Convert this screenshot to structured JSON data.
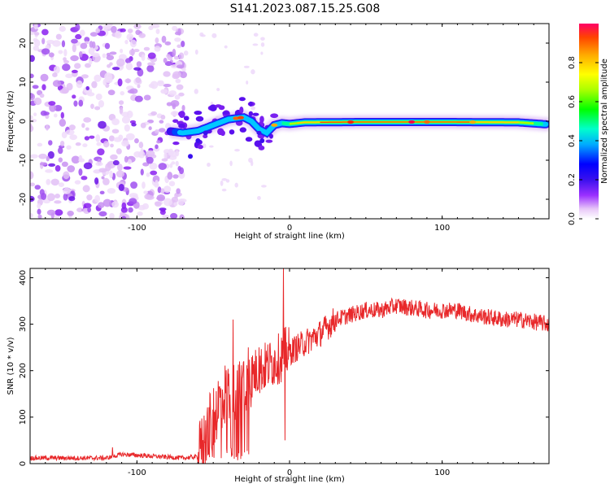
{
  "title": "S141.2023.087.15.25.G08",
  "chart_data": [
    {
      "type": "heatmap",
      "xlabel": "Height of straight line (km)",
      "ylabel": "Frequency (Hz)",
      "xlim": [
        -170,
        170
      ],
      "ylim": [
        -25,
        25
      ],
      "xticks": [
        -100,
        0,
        100
      ],
      "yticks": [
        -20,
        -10,
        0,
        10,
        20
      ],
      "colorbar": {
        "label": "Normalized spectral amplitude",
        "range": [
          0,
          1
        ],
        "ticks": [
          "0.0",
          "0.2",
          "0.4",
          "0.6",
          "0.8"
        ],
        "colormap": [
          "#ffffff",
          "#e8c8f8",
          "#9b30ff",
          "#5a10ee",
          "#0000ff",
          "#00aaff",
          "#00ffcc",
          "#00ff00",
          "#aaff00",
          "#ffff00",
          "#ffaa00",
          "#ff4400",
          "#ff0066"
        ]
      },
      "ridge": {
        "description_points_x": [
          -80,
          -70,
          -60,
          -50,
          -40,
          -30,
          -25,
          -20,
          -15,
          -10,
          -5,
          0,
          10,
          50,
          100,
          150,
          168
        ],
        "description_points_y": [
          -2.5,
          -3,
          -2.5,
          -1,
          0.5,
          1,
          0,
          -2,
          -3,
          -1,
          -0.5,
          -0.7,
          -0.3,
          -0.2,
          -0.2,
          -0.3,
          -0.8
        ]
      },
      "noise_region_x": [
        -170,
        -75
      ]
    },
    {
      "type": "line",
      "xlabel": "Height of straight line (km)",
      "ylabel": "SNR (10 * v/v)",
      "xlim": [
        -170,
        170
      ],
      "ylim": [
        0,
        420
      ],
      "xticks": [
        -100,
        0,
        100
      ],
      "yticks": [
        0,
        100,
        200,
        300,
        400
      ],
      "series": [
        {
          "color": "#e8282a",
          "envelope_x": [
            -170,
            -120,
            -110,
            -70,
            -60,
            -55,
            -50,
            -45,
            -40,
            -35,
            -30,
            -25,
            -20,
            -15,
            -10,
            -5,
            -3,
            0,
            10,
            20,
            30,
            40,
            50,
            60,
            70,
            80,
            90,
            100,
            110,
            120,
            130,
            140,
            150,
            160,
            170
          ],
          "envelope_y": [
            12,
            12,
            20,
            12,
            15,
            60,
            100,
            140,
            160,
            150,
            170,
            190,
            200,
            210,
            220,
            230,
            240,
            240,
            260,
            280,
            310,
            320,
            330,
            330,
            340,
            335,
            330,
            330,
            330,
            320,
            315,
            310,
            310,
            305,
            300
          ],
          "spikes": [
            {
              "x": -116,
              "y": 35
            },
            {
              "x": -52,
              "y": 150
            },
            {
              "x": -46,
              "y": 160
            },
            {
              "x": -37,
              "y": 310
            },
            {
              "x": -30,
              "y": 220
            },
            {
              "x": -27,
              "y": 250
            },
            {
              "x": -20,
              "y": 250
            },
            {
              "x": -6,
              "y": 230
            },
            {
              "x": -4,
              "y": 420
            },
            {
              "x": -3,
              "y": 50
            }
          ]
        }
      ]
    }
  ]
}
